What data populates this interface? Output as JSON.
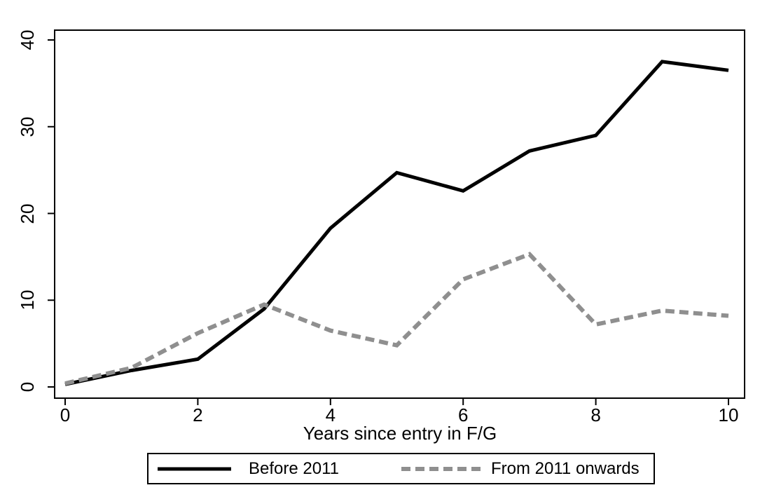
{
  "chart_data": {
    "type": "line",
    "x": [
      0,
      1,
      2,
      3,
      4,
      5,
      6,
      7,
      8,
      9,
      10
    ],
    "series": [
      {
        "name": "Before 2011",
        "style": "solid",
        "color": "#000000",
        "values": [
          0.3,
          1.9,
          3.2,
          9.0,
          18.3,
          24.7,
          22.6,
          27.2,
          29.0,
          37.5,
          36.5
        ]
      },
      {
        "name": "From 2011 onwards",
        "style": "dashed",
        "color": "#8f8f8f",
        "values": [
          0.4,
          2.2,
          6.2,
          9.5,
          6.5,
          4.8,
          12.4,
          15.3,
          7.2,
          8.8,
          8.2
        ]
      }
    ],
    "title": "",
    "xlabel": "Years since entry in F/G",
    "ylabel": "",
    "xlim": [
      0,
      10
    ],
    "ylim": [
      0,
      40
    ],
    "x_ticks": [
      0,
      2,
      4,
      6,
      8,
      10
    ],
    "y_ticks": [
      0,
      10,
      20,
      30,
      40
    ],
    "grid": false,
    "legend_position": "bottom"
  },
  "colors": {
    "axis": "#000000",
    "background": "#ffffff",
    "series_1": "#000000",
    "series_2": "#8f8f8f"
  }
}
